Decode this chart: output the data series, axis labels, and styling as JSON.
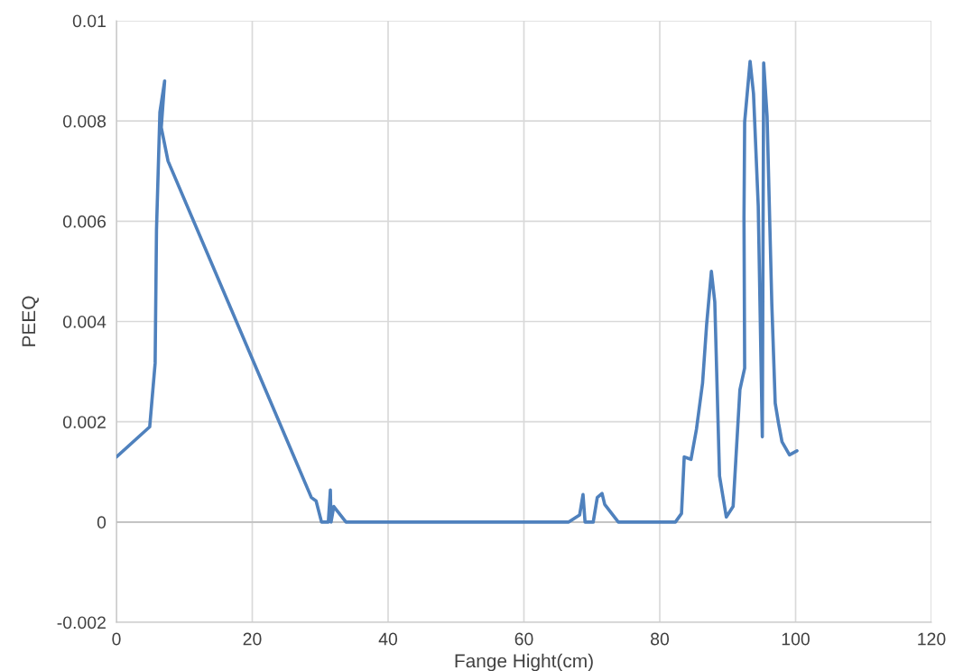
{
  "chart_data": {
    "type": "line",
    "xlabel": "Fange Hight(cm)",
    "ylabel": "PEEQ",
    "xlim": [
      0,
      120
    ],
    "xticks": [
      0,
      20,
      40,
      60,
      80,
      100,
      120
    ],
    "ylim": [
      -0.002,
      0.01
    ],
    "yticks": [
      {
        "value": -0.002,
        "label": "-0.002"
      },
      0,
      0.002,
      0.004,
      0.006,
      0.008,
      {
        "value": 0.01,
        "label": "0.01"
      }
    ],
    "grid": true,
    "marker": "none",
    "line_style": "solid",
    "series": [
      {
        "color": "#4f81bd",
        "x": [
          0,
          4.9,
          5.7,
          5.9,
          6.4,
          7.1,
          6.6,
          7.6,
          28.7,
          29.4,
          30.2,
          31.2,
          31.5,
          31.6,
          32,
          33.8,
          34.5,
          40,
          50,
          60,
          66.6,
          68.2,
          68.7,
          69,
          70.2,
          70.8,
          71.5,
          71.9,
          73.9,
          78,
          82.3,
          83.2,
          83.6,
          84.6,
          85.4,
          86.3,
          86.9,
          87.6,
          88.1,
          88.8,
          89.8,
          90.8,
          91.8,
          92.5,
          92.4,
          92.5,
          93.3,
          93.8,
          94.5,
          95.1,
          95.3,
          95.8,
          96.5,
          97.0,
          97.5,
          98,
          99.1,
          100.2
        ],
        "values": [
          0.0013,
          0.0019,
          0.00317,
          0.00583,
          0.00818,
          0.0088,
          0.00787,
          0.0072,
          0.00049,
          0.00042,
          0,
          0,
          0.00064,
          0,
          0.00031,
          0,
          0,
          0,
          0,
          0,
          0,
          0.00014,
          0.00055,
          0,
          0,
          0.00049,
          0.00057,
          0.00035,
          0,
          0,
          0,
          0.00017,
          0.0013,
          0.00125,
          0.00185,
          0.00277,
          0.00394,
          0.005,
          0.00439,
          0.00092,
          0.0001,
          0.00031,
          0.00264,
          0.00307,
          0.00607,
          0.00798,
          0.00919,
          0.00855,
          0.0063,
          0.0017,
          0.00916,
          0.0081,
          0.00434,
          0.00237,
          0.00196,
          0.0016,
          0.00134,
          0.00142
        ]
      }
    ]
  }
}
